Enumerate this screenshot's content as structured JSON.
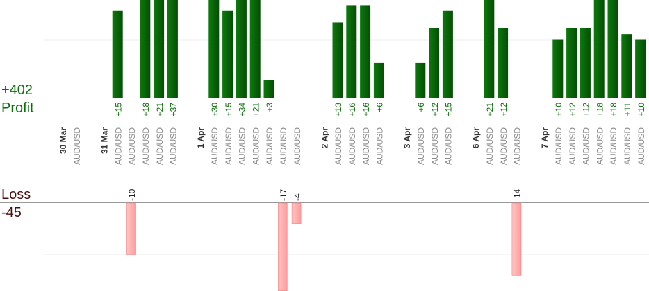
{
  "summary": {
    "profit_total": "+402",
    "profit_label": "Profit",
    "loss_label": "Loss",
    "loss_total": "-45"
  },
  "colors": {
    "profit_bar": "#0b6e0b",
    "profit_bar_dark": "#054d05",
    "profit_text": "#0a6e0a",
    "loss_bar": "#ffb3b3",
    "loss_bar_edge": "#f08080",
    "loss_text": "#222222",
    "date_text": "#333333",
    "symbol_text": "#8a8a8a",
    "gridline": "#eeeeee",
    "baseline": "#999999"
  },
  "chart_data": {
    "type": "bar",
    "x_unit": "trade",
    "profit_ylim": [
      0,
      17
    ],
    "loss_ylim": [
      -18,
      0
    ],
    "columns": [
      {
        "kind": "date",
        "label": "30 Mar"
      },
      {
        "kind": "trade",
        "label": "AUD/USD",
        "value": null
      },
      {
        "kind": "gap"
      },
      {
        "kind": "date",
        "label": "31 Mar"
      },
      {
        "kind": "trade",
        "label": "AUD/USD",
        "value": 15
      },
      {
        "kind": "trade",
        "label": "AUD/USD",
        "value": -10
      },
      {
        "kind": "trade",
        "label": "AUD/USD",
        "value": 18
      },
      {
        "kind": "trade",
        "label": "AUD/USD",
        "value": 21
      },
      {
        "kind": "trade",
        "label": "AUD/USD",
        "value": 37
      },
      {
        "kind": "gap"
      },
      {
        "kind": "date",
        "label": "1 Apr"
      },
      {
        "kind": "trade",
        "label": "AUD/USD",
        "value": 30
      },
      {
        "kind": "trade",
        "label": "AUD/USD",
        "value": 15
      },
      {
        "kind": "trade",
        "label": "AUD/USD",
        "value": 34
      },
      {
        "kind": "trade",
        "label": "AUD/USD",
        "value": 21
      },
      {
        "kind": "trade",
        "label": "AUD/USD",
        "value": 3
      },
      {
        "kind": "trade",
        "label": "AUD/USD",
        "value": -17
      },
      {
        "kind": "trade",
        "label": "AUD/USD",
        "value": -4
      },
      {
        "kind": "gap"
      },
      {
        "kind": "date",
        "label": "2 Apr"
      },
      {
        "kind": "trade",
        "label": "AUD/USD",
        "value": 13
      },
      {
        "kind": "trade",
        "label": "AUD/USD",
        "value": 16
      },
      {
        "kind": "trade",
        "label": "AUD/USD",
        "value": 16
      },
      {
        "kind": "trade",
        "label": "AUD/USD",
        "value": 6
      },
      {
        "kind": "gap"
      },
      {
        "kind": "date",
        "label": "3 Apr"
      },
      {
        "kind": "trade",
        "label": "AUD/USD",
        "value": 6
      },
      {
        "kind": "trade",
        "label": "AUD/USD",
        "value": 12
      },
      {
        "kind": "trade",
        "label": "AUD/USD",
        "value": 15
      },
      {
        "kind": "gap"
      },
      {
        "kind": "date",
        "label": "6 Apr"
      },
      {
        "kind": "trade",
        "label": "AUD/USD",
        "value": 21
      },
      {
        "kind": "trade",
        "label": "AUD/USD",
        "value": 12
      },
      {
        "kind": "trade",
        "label": "AUD/USD",
        "value": -14
      },
      {
        "kind": "gap"
      },
      {
        "kind": "date",
        "label": "7 Apr"
      },
      {
        "kind": "trade",
        "label": "AUD/USD",
        "value": 10
      },
      {
        "kind": "trade",
        "label": "AUD/USD",
        "value": 12
      },
      {
        "kind": "trade",
        "label": "AUD/USD",
        "value": 12
      },
      {
        "kind": "trade",
        "label": "AUD/USD",
        "value": 18
      },
      {
        "kind": "trade",
        "label": "AUD/USD",
        "value": 18
      },
      {
        "kind": "trade",
        "label": "AUD/USD",
        "value": 11
      },
      {
        "kind": "trade",
        "label": "AUD/USD",
        "value": 10
      }
    ]
  }
}
